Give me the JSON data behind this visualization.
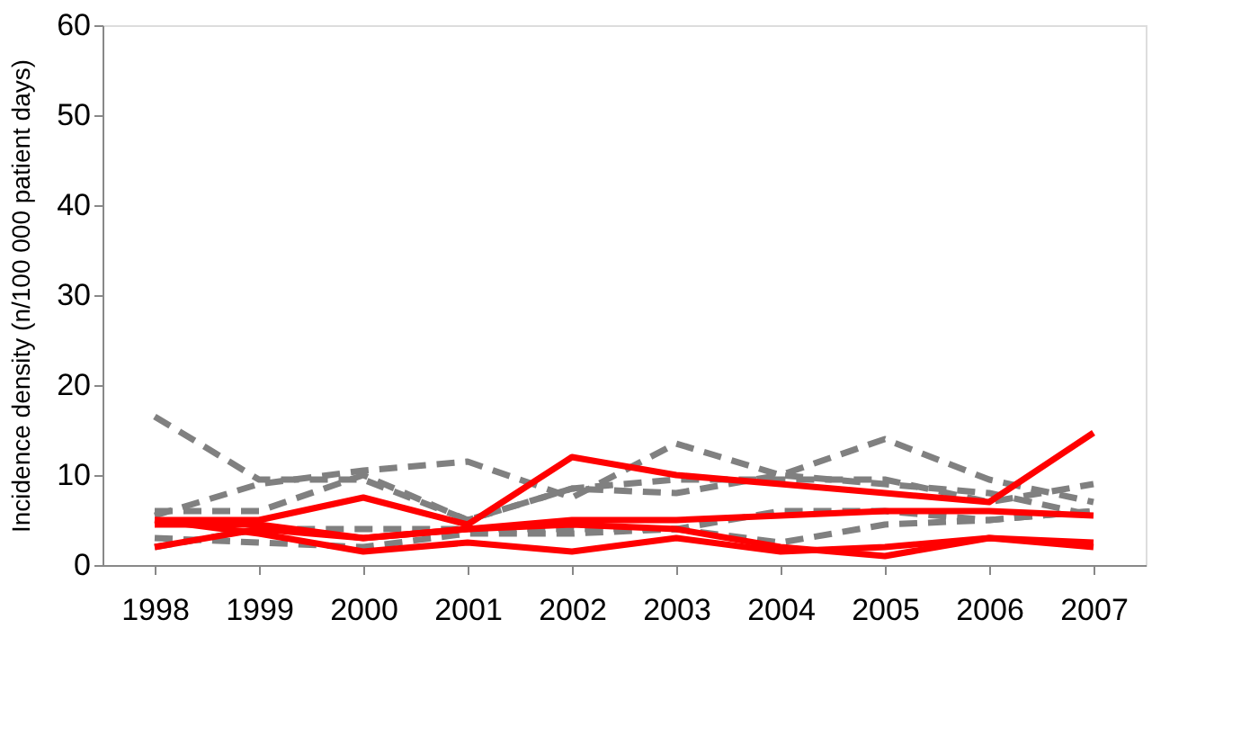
{
  "chart_data": {
    "type": "line",
    "ylabel": "Incidence density (n/100 000 patient days)",
    "categories": [
      "1998",
      "1999",
      "2000",
      "2001",
      "2002",
      "2003",
      "2004",
      "2005",
      "2006",
      "2007"
    ],
    "series": [
      {
        "color": "#808080",
        "line_style": "dashed",
        "values": [
          16.5,
          9.5,
          9.5,
          5,
          8.5,
          8,
          10,
          9,
          8,
          5.5
        ]
      },
      {
        "color": "#808080",
        "line_style": "dashed",
        "values": [
          5.5,
          9,
          10.5,
          11.5,
          7.5,
          13.5,
          10,
          14,
          9.5,
          7
        ]
      },
      {
        "color": "#808080",
        "line_style": "dashed",
        "values": [
          6,
          6,
          10,
          5,
          8.5,
          9.5,
          9.5,
          9.5,
          7,
          9
        ]
      },
      {
        "color": "#808080",
        "line_style": "dashed",
        "values": [
          2,
          4,
          4,
          4,
          4,
          4,
          6,
          6,
          5,
          6
        ]
      },
      {
        "color": "#808080",
        "line_style": "dashed",
        "values": [
          3,
          2.5,
          2,
          3.5,
          3.5,
          4,
          2.5,
          4.5,
          5,
          6
        ]
      },
      {
        "color": "#ff0000",
        "line_style": "solid",
        "values": [
          5,
          5,
          7.5,
          4.5,
          12,
          10,
          9,
          8,
          7,
          14.7
        ]
      },
      {
        "color": "#ff0000",
        "line_style": "solid",
        "values": [
          4.5,
          4.5,
          3,
          4,
          5,
          5,
          5.5,
          6,
          6,
          5.5
        ]
      },
      {
        "color": "#ff0000",
        "line_style": "solid",
        "values": [
          2,
          4,
          3,
          4,
          4.5,
          4,
          2,
          1,
          3,
          2
        ]
      },
      {
        "color": "#ff0000",
        "line_style": "solid",
        "values": [
          5,
          3.5,
          1.5,
          2.5,
          1.5,
          3,
          1.5,
          2,
          3,
          2.5
        ]
      }
    ],
    "ylim": [
      0,
      60
    ],
    "yticks": [
      0,
      10,
      20,
      30,
      40,
      50,
      60
    ],
    "grid": false,
    "marker": "none"
  }
}
